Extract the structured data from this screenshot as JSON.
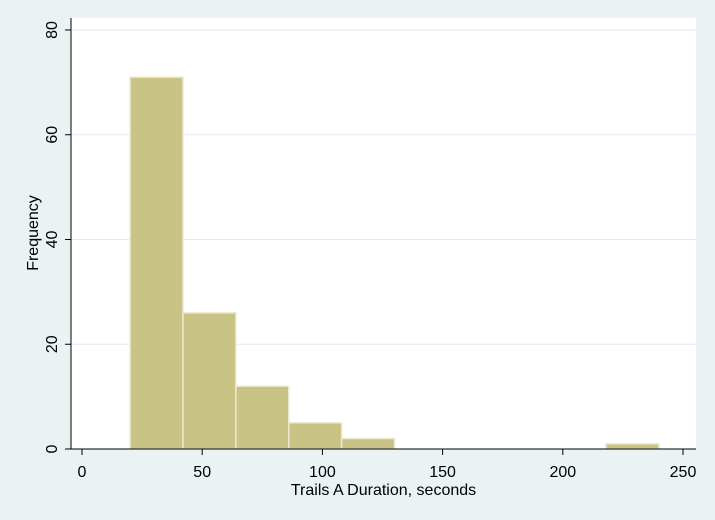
{
  "chart_data": {
    "type": "bar",
    "subtype": "histogram",
    "xlabel": "Trails A Duration, seconds",
    "ylabel": "Frequency",
    "xlim": [
      0,
      250
    ],
    "ylim": [
      0,
      80
    ],
    "x_ticks": [
      0,
      50,
      100,
      150,
      200,
      250
    ],
    "y_ticks": [
      0,
      20,
      40,
      60,
      80
    ],
    "bins": [
      {
        "start": 20,
        "end": 42,
        "value": 71
      },
      {
        "start": 42,
        "end": 64,
        "value": 26
      },
      {
        "start": 64,
        "end": 86,
        "value": 12
      },
      {
        "start": 86,
        "end": 108,
        "value": 5
      },
      {
        "start": 108,
        "end": 130,
        "value": 2
      },
      {
        "start": 130,
        "end": 152,
        "value": 0
      },
      {
        "start": 152,
        "end": 174,
        "value": 0
      },
      {
        "start": 174,
        "end": 196,
        "value": 0
      },
      {
        "start": 196,
        "end": 218,
        "value": 0
      },
      {
        "start": 218,
        "end": 240,
        "value": 1
      }
    ],
    "grid": true,
    "colors": {
      "bar_fill": "#c9c386",
      "bar_stroke": "#ebe9d0",
      "background": "#eaf2f3",
      "plot_background": "#ffffff",
      "grid": "#e3eaed",
      "axis": "#000000"
    }
  }
}
